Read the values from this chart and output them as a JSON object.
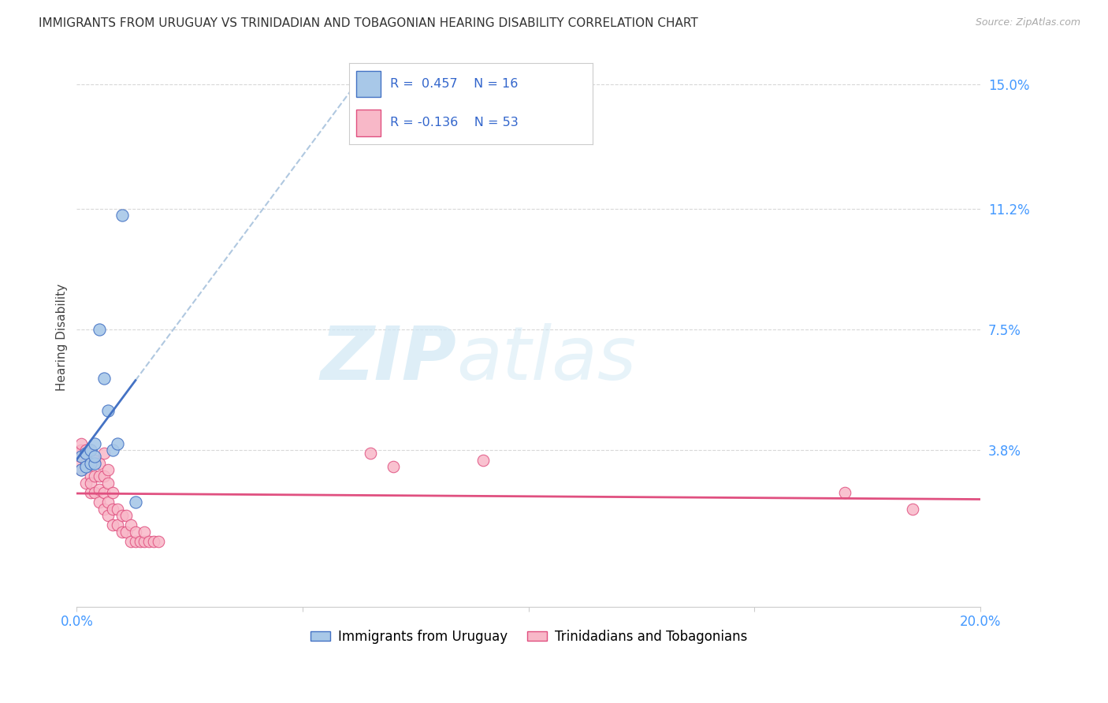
{
  "title": "IMMIGRANTS FROM URUGUAY VS TRINIDADIAN AND TOBAGONIAN HEARING DISABILITY CORRELATION CHART",
  "source": "Source: ZipAtlas.com",
  "ylabel": "Hearing Disability",
  "xmin": 0.0,
  "xmax": 0.2,
  "ymin": -0.01,
  "ymax": 0.155,
  "ytick_vals": [
    0.0,
    0.038,
    0.075,
    0.112,
    0.15
  ],
  "ytick_labels": [
    "",
    "3.8%",
    "7.5%",
    "11.2%",
    "15.0%"
  ],
  "blue_color": "#a8c8e8",
  "blue_edge_color": "#4472c4",
  "blue_line_color": "#4472c4",
  "pink_color": "#f8b8c8",
  "pink_edge_color": "#e05080",
  "pink_line_color": "#e05080",
  "dashed_line_color": "#b0c8e0",
  "grid_color": "#d8d8d8",
  "background_color": "#ffffff",
  "watermark_color": "#d0e8f5",
  "legend_label1": "Immigrants from Uruguay",
  "legend_label2": "Trinidadians and Tobagonians",
  "blue_x": [
    0.001,
    0.001,
    0.002,
    0.002,
    0.003,
    0.003,
    0.004,
    0.004,
    0.004,
    0.005,
    0.006,
    0.007,
    0.008,
    0.009,
    0.01,
    0.013
  ],
  "blue_y": [
    0.032,
    0.036,
    0.033,
    0.037,
    0.034,
    0.038,
    0.034,
    0.036,
    0.04,
    0.075,
    0.06,
    0.05,
    0.038,
    0.04,
    0.11,
    0.022
  ],
  "pink_x": [
    0.0,
    0.0,
    0.001,
    0.001,
    0.001,
    0.001,
    0.002,
    0.002,
    0.002,
    0.003,
    0.003,
    0.003,
    0.003,
    0.003,
    0.004,
    0.004,
    0.004,
    0.005,
    0.005,
    0.005,
    0.005,
    0.006,
    0.006,
    0.006,
    0.006,
    0.007,
    0.007,
    0.007,
    0.007,
    0.008,
    0.008,
    0.008,
    0.009,
    0.009,
    0.01,
    0.01,
    0.011,
    0.011,
    0.012,
    0.012,
    0.013,
    0.013,
    0.014,
    0.015,
    0.015,
    0.016,
    0.017,
    0.018,
    0.065,
    0.07,
    0.09,
    0.17,
    0.185
  ],
  "pink_y": [
    0.033,
    0.037,
    0.032,
    0.036,
    0.038,
    0.04,
    0.028,
    0.034,
    0.038,
    0.025,
    0.03,
    0.034,
    0.038,
    0.028,
    0.025,
    0.03,
    0.035,
    0.022,
    0.026,
    0.03,
    0.034,
    0.02,
    0.025,
    0.03,
    0.037,
    0.018,
    0.022,
    0.028,
    0.032,
    0.015,
    0.02,
    0.025,
    0.015,
    0.02,
    0.013,
    0.018,
    0.013,
    0.018,
    0.01,
    0.015,
    0.01,
    0.013,
    0.01,
    0.01,
    0.013,
    0.01,
    0.01,
    0.01,
    0.037,
    0.033,
    0.035,
    0.025,
    0.02
  ],
  "blue_line_x_start": 0.0,
  "blue_line_x_solid_end": 0.013,
  "blue_line_x_dashed_end": 0.2,
  "title_fontsize": 11,
  "source_fontsize": 9,
  "tick_fontsize": 12
}
